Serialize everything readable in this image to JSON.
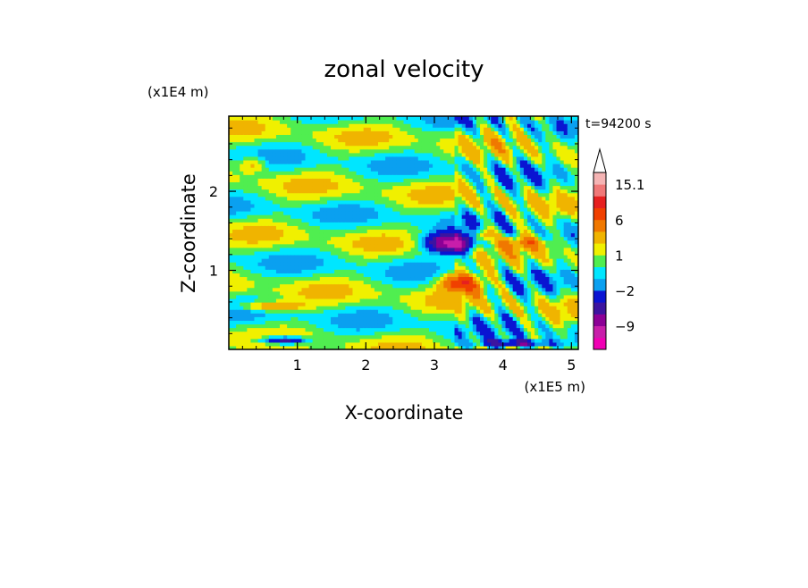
{
  "chart_data": {
    "type": "heatmap",
    "title": "zonal velocity",
    "xlabel": "X-coordinate",
    "ylabel": "Z-coordinate",
    "x_unit": "(x1E5 m)",
    "y_unit": "(x1E4 m)",
    "time_label": "t=94200 s",
    "xlim": [
      0,
      5.1
    ],
    "ylim": [
      0,
      2.95
    ],
    "x_ticks": [
      1,
      2,
      3,
      4,
      5
    ],
    "y_ticks": [
      1,
      2
    ],
    "colorbar": {
      "levels": [
        -15,
        -12,
        -9,
        -6,
        -4,
        -2,
        -1,
        0,
        1,
        2,
        4,
        6,
        9,
        12,
        15.1
      ],
      "labeled_ticks": [
        {
          "value": 15.1,
          "label": "15.1"
        },
        {
          "value": 6,
          "label": "6"
        },
        {
          "value": 1,
          "label": "1"
        },
        {
          "value": -2,
          "label": "−2"
        },
        {
          "value": -9,
          "label": "−9"
        }
      ],
      "colors": [
        "#f000b4",
        "#c81eaa",
        "#8c0096",
        "#3c14a0",
        "#0a14d2",
        "#0aa0f0",
        "#00e6ff",
        "#50ee50",
        "#f0f000",
        "#f0b400",
        "#f07800",
        "#f04000",
        "#e62020",
        "#f07878",
        "#f5b4b4"
      ],
      "extend_max": true
    },
    "features": [
      {
        "x": 3.25,
        "z": 1.35,
        "value": -11,
        "wx": 0.35,
        "wz": 0.12
      },
      {
        "x": 3.4,
        "z": 0.85,
        "value": 8,
        "wx": 0.3,
        "wz": 0.12
      },
      {
        "x": 0.8,
        "z": 0.12,
        "value": -7,
        "wx": 0.35,
        "wz": 0.05
      },
      {
        "x": 4.2,
        "z": 0.08,
        "value": -6,
        "wx": 0.5,
        "wz": 0.05
      },
      {
        "x": 0.6,
        "z": 0.55,
        "value": 4,
        "wx": 0.45,
        "wz": 0.06
      },
      {
        "x": 3.7,
        "z": 1.45,
        "value": 5,
        "wx": 0.12,
        "wz": 0.1
      },
      {
        "x": 4.3,
        "z": 1.35,
        "value": 4,
        "wx": 0.3,
        "wz": 0.08
      },
      {
        "x": 0.35,
        "z": 2.35,
        "value": 3,
        "wx": 0.2,
        "wz": 0.1
      }
    ]
  }
}
